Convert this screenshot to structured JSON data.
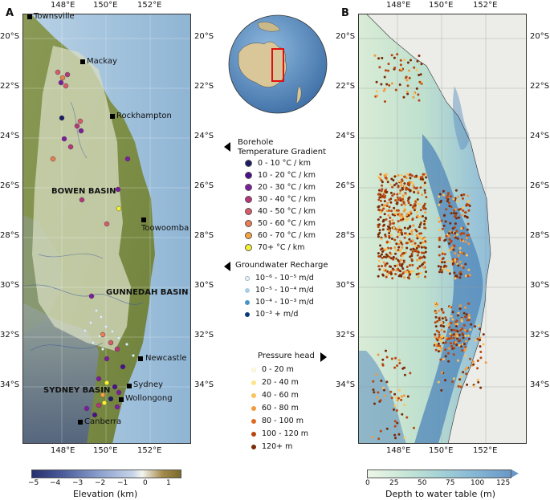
{
  "panels": {
    "a": {
      "letter": "A"
    },
    "b": {
      "letter": "B"
    }
  },
  "axes": {
    "lon_labels": [
      "148°E",
      "150°E",
      "152°E"
    ],
    "lat_labels": [
      "20°S",
      "22°S",
      "24°S",
      "26°S",
      "28°S",
      "30°S",
      "32°S",
      "34°S"
    ]
  },
  "cities": [
    {
      "name": "Townsville"
    },
    {
      "name": "Mackay"
    },
    {
      "name": "Rockhampton"
    },
    {
      "name": "Toowoomba"
    },
    {
      "name": "Newcastle"
    },
    {
      "name": "Sydney"
    },
    {
      "name": "Wollongong"
    },
    {
      "name": "Canberra"
    }
  ],
  "basins": [
    "BOWEN BASIN",
    "GUNNEDAH BASIN",
    "SYDNEY BASIN"
  ],
  "legend_temperature": {
    "title_line1": "Borehole",
    "title_line2": "Temperature Gradient",
    "items": [
      {
        "label": "0 - 10  °C / km",
        "color": "#1a1a66"
      },
      {
        "label": "10 - 20  °C / km",
        "color": "#4b0f8c"
      },
      {
        "label": "20 - 30  °C / km",
        "color": "#7e1c9e"
      },
      {
        "label": "30 - 40  °C / km",
        "color": "#b5367a"
      },
      {
        "label": "40 - 50  °C / km",
        "color": "#d85a6b"
      },
      {
        "label": "50 - 60  °C / km",
        "color": "#ea7d52"
      },
      {
        "label": "60 - 70  °C / km",
        "color": "#f6a340"
      },
      {
        "label": "70+  °C / km",
        "color": "#f4f232"
      }
    ]
  },
  "legend_recharge": {
    "title": "Groundwater Recharge",
    "items": [
      {
        "label": "10⁻⁶ - 10⁻⁵ m/d",
        "color": "#eef4f8"
      },
      {
        "label": "10⁻⁵ - 10⁻⁴ m/d",
        "color": "#a8cde6"
      },
      {
        "label": "10⁻⁴ - 10⁻³ m/d",
        "color": "#4a91c6"
      },
      {
        "label": "10⁻³ + m/d",
        "color": "#0b3a7a"
      }
    ]
  },
  "legend_pressure": {
    "title": "Pressure head",
    "items": [
      {
        "label": "0 - 20 m",
        "color": "#fffbd0"
      },
      {
        "label": "20 - 40 m",
        "color": "#fde58a"
      },
      {
        "label": "40 - 60 m",
        "color": "#fbc25a"
      },
      {
        "label": "60 - 80 m",
        "color": "#f39a3c"
      },
      {
        "label": "80 - 100 m",
        "color": "#de6a22"
      },
      {
        "label": "100 - 120 m",
        "color": "#b9450e"
      },
      {
        "label": "120+ m",
        "color": "#7a2a06"
      }
    ]
  },
  "colorbar_elevation": {
    "label": "Elevation (km)",
    "ticks": [
      "−5",
      "−4",
      "−3",
      "−2",
      "−1",
      "0",
      "1"
    ]
  },
  "colorbar_water": {
    "label": "Depth to water table (m)",
    "ticks": [
      "0",
      "25",
      "50",
      "75",
      "100",
      "125"
    ]
  }
}
